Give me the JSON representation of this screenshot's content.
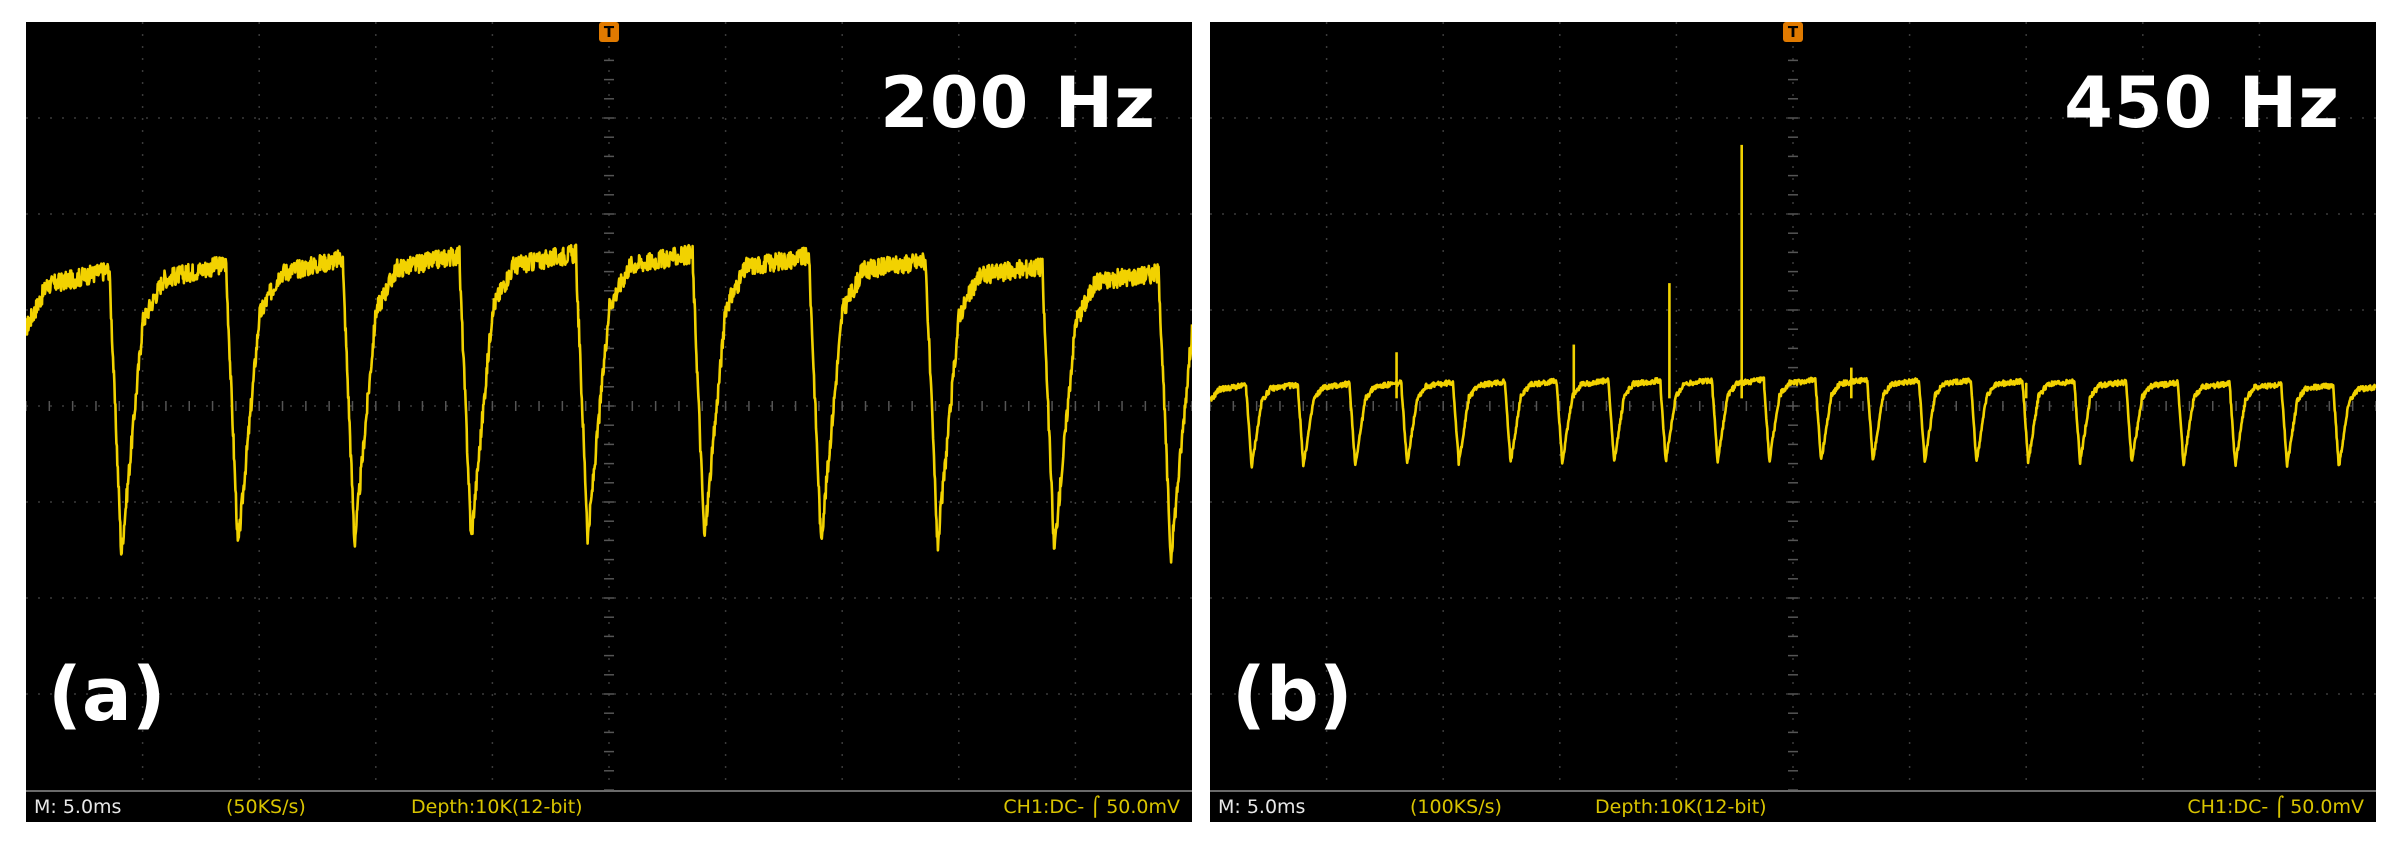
{
  "chart_data": [
    {
      "type": "line",
      "frequency_label": "200 Hz",
      "panel_label": "(a)",
      "trigger_marker": "T",
      "status_bar": {
        "timebase": "M: 5.0ms",
        "sample_rate": "(50KS/s)",
        "depth": "Depth:10K(12-bit)",
        "channel": "CH1:DC-",
        "volts_per_div": "50.0mV"
      },
      "signal": {
        "period_ms": 5.0,
        "high_mv": 75,
        "low_mv": -100,
        "duty": 0.72,
        "span_ms": 50
      },
      "xlim_ms": [
        0,
        50
      ],
      "ylim_mv": [
        -250,
        250
      ],
      "grid": true,
      "trace_color": "#f2d200"
    },
    {
      "type": "line",
      "frequency_label": "450 Hz",
      "panel_label": "(b)",
      "trigger_marker": "T",
      "status_bar": {
        "timebase": "M: 5.0ms",
        "sample_rate": "(100KS/s)",
        "depth": "Depth:10K(12-bit)",
        "channel": "CH1:DC-",
        "volts_per_div": "50.0mV"
      },
      "signal": {
        "period_ms": 2.22,
        "high_mv": 10,
        "low_mv": -40,
        "duty": 0.7,
        "span_ms": 50
      },
      "spikes_ms_mv": [
        [
          22.8,
          170
        ],
        [
          19.7,
          80
        ],
        [
          8.0,
          35
        ],
        [
          15.6,
          40
        ],
        [
          27.5,
          25
        ],
        [
          35.0,
          15
        ]
      ],
      "xlim_ms": [
        0,
        50
      ],
      "ylim_mv": [
        -250,
        250
      ],
      "grid": true,
      "trace_color": "#f2d200"
    }
  ]
}
